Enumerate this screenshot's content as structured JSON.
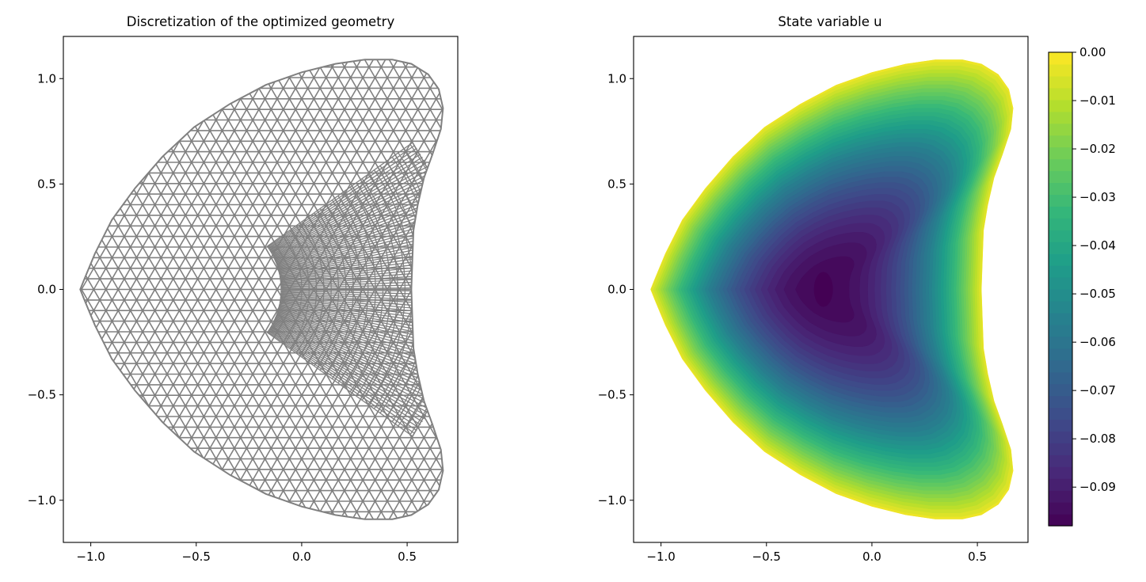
{
  "chart_data": [
    {
      "type": "mesh",
      "title": "Discretization of the optimized geometry",
      "xlabel": "",
      "ylabel": "",
      "xlim": [
        -1.13,
        0.74
      ],
      "ylim": [
        -1.2,
        1.2
      ],
      "xticks": [
        -1.0,
        -0.5,
        0.0,
        0.5
      ],
      "xtick_labels": [
        "−1.0",
        "−0.5",
        "0.0",
        "0.5"
      ],
      "yticks": [
        -1.0,
        -0.5,
        0.0,
        0.5,
        1.0
      ],
      "ytick_labels": [
        "−1.0",
        "−0.5",
        "0.0",
        "0.5",
        "1.0"
      ],
      "mesh_color": "#808080",
      "domain_extent": {
        "x": [
          -1.05,
          0.67
        ],
        "y": [
          -1.09,
          1.09
        ]
      },
      "grid": false
    },
    {
      "type": "contourf",
      "title": "State variable u",
      "xlabel": "",
      "ylabel": "",
      "xlim": [
        -1.13,
        0.74
      ],
      "ylim": [
        -1.2,
        1.2
      ],
      "xticks": [
        -1.0,
        -0.5,
        0.0,
        0.5
      ],
      "xtick_labels": [
        "−1.0",
        "−0.5",
        "0.0",
        "0.5"
      ],
      "yticks": [
        -1.0,
        -0.5,
        0.0,
        0.5,
        1.0
      ],
      "ytick_labels": [
        "−1.0",
        "−0.5",
        "0.0",
        "0.5",
        "1.0"
      ],
      "minimum": {
        "x": -0.23,
        "y": 0.0,
        "value": -0.098
      },
      "colormap": "viridis",
      "colorbar": {
        "range": [
          -0.098,
          0.0
        ],
        "ticks": [
          0.0,
          -0.01,
          -0.02,
          -0.03,
          -0.04,
          -0.05,
          -0.06,
          -0.07,
          -0.08,
          -0.09
        ],
        "tick_labels": [
          "0.00",
          "−0.01",
          "−0.02",
          "−0.03",
          "−0.04",
          "−0.05",
          "−0.06",
          "−0.07",
          "−0.08",
          "−0.09"
        ],
        "placement": "right"
      },
      "grid": false
    }
  ]
}
